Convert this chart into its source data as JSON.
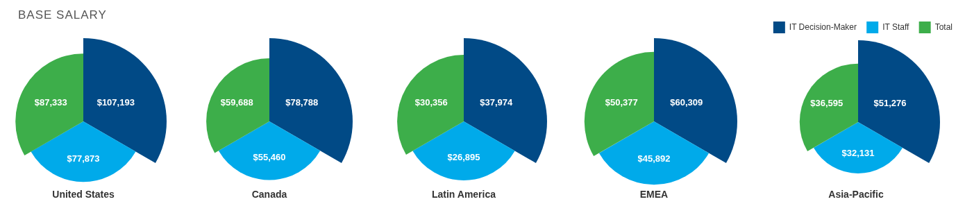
{
  "chart_data": {
    "type": "other",
    "title": "BASE SALARY",
    "legend": "top right",
    "categories": [
      "United States",
      "Canada",
      "Latin America",
      "EMEA",
      "Asia-Pacific"
    ],
    "series": [
      {
        "name": "IT Decision-Maker",
        "color": "#014a86",
        "values": [
          107193,
          78788,
          37974,
          60309,
          51276
        ],
        "value_labels": [
          "$107,193",
          "$78,788",
          "$37,974",
          "$60,309",
          "$51,276"
        ]
      },
      {
        "name": "IT Staff",
        "color": "#00aaea",
        "values": [
          77873,
          55460,
          26895,
          45892,
          32131
        ],
        "value_labels": [
          "$77,873",
          "$55,460",
          "$26,895",
          "$45,892",
          "$32,131"
        ]
      },
      {
        "name": "Total",
        "color": "#3dae4a",
        "values": [
          87333,
          59688,
          30356,
          50377,
          36595
        ],
        "value_labels": [
          "$87,333",
          "$59,688",
          "$30,356",
          "$50,377",
          "$36,595"
        ]
      }
    ]
  }
}
